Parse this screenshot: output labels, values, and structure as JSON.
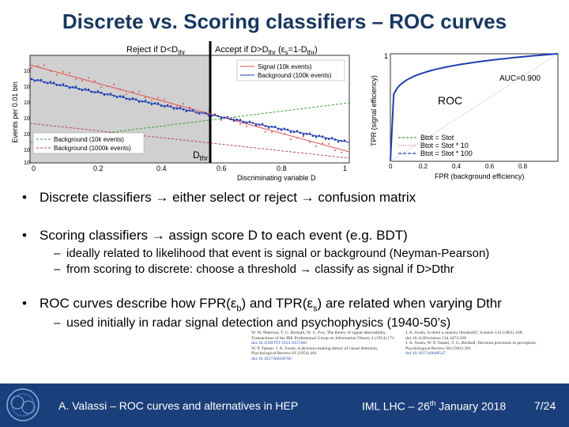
{
  "title": "Discrete vs. Scoring classifiers – ROC curves",
  "hist": {
    "reject_label_a": "Reject if D<D",
    "reject_label_sub": "thr",
    "accept_label_a": "Accept if D>D",
    "accept_label_sub": "thr",
    "accept_label_b": " (ε",
    "accept_label_sub2": "s",
    "accept_label_c": "=1-D",
    "accept_label_sub3": "thr",
    "accept_label_d": ")",
    "dthr_label": "D",
    "dthr_sub": "thr",
    "ylabel": "Events per 0.01 bin",
    "xlabel": "Discriminating variable D",
    "xticks": [
      "0",
      "0.2",
      "0.4",
      "0.6",
      "0.8",
      "1"
    ],
    "legend_top": [
      "Signal (10k events)",
      "Background (100k events)"
    ],
    "legend_bottom": [
      "Background (10k events)",
      "Background (1000k events)"
    ],
    "colors": {
      "signal": "#e05050",
      "background": "#1f3fb0",
      "bg10k": "#40a040",
      "bg1000k": "#c04060"
    }
  },
  "roc": {
    "ylabel": "TPR (signal efficiency)",
    "xlabel": "FPR (background efficiency)",
    "label": "ROC",
    "auc": "AUC=0.900",
    "yticks": [
      "1"
    ],
    "xticks": [
      "0",
      "0.2",
      "0.4",
      "0.6",
      "0.8"
    ],
    "legend": [
      "Btot = Stot",
      "Btot = Stot * 10",
      "Btot = Stot * 100"
    ]
  },
  "bullets": [
    {
      "text": "Discrete classifiers → either select or reject → confusion matrix",
      "subs": []
    },
    {
      "text": "Scoring classifiers → assign score D to each event (e.g. BDT)",
      "subs": [
        "ideally related to likelihood that event is signal or background (Neyman-Pearson)",
        "from scoring to discrete: choose a threshold → classify as signal if D>Dthr"
      ]
    },
    {
      "text": "ROC curves describe how FPR(ε_b) and TPR(ε_s) are related when varying Dthr",
      "subs": [
        "used initially in radar signal detection and psychophysics (1940-50’s)"
      ]
    }
  ],
  "bullet3": {
    "a": "ROC curves describe how FPR(ε",
    "b": "b",
    "c": ") and TPR(ε",
    "d": "s",
    "e": ") are related when varying Dthr"
  },
  "refs": {
    "left": [
      "W. W. Peterson, T. G. Birdsall, W. C. Fox, The theory of signal detectability, Transactions of the IRE Professional Group on Information Theory 4 (1954) 171",
      "doi:10.1109/TIT.1954.1057460",
      "W. P. Tanner, J. A. Swets, A decision-making theory of visual detection, Psychological Review 61 (1954) 401",
      "doi:10.1037/h0058700"
    ],
    "right": [
      "J. A. Swets, Is there a sensory threshold?, Science 134 (1961) 168, doi:10.1126/science.134.3473.168",
      "J. A. Swets, W. P. Tanner, T. G. Birdsall, Decision processes in perception, Psychological Review 68 (1961) 301",
      "doi:10.1037/h0040547"
    ]
  },
  "footer": {
    "left": "A. Valassi – ROC curves and alternatives in HEP",
    "mid_a": "IML LHC – 26",
    "mid_sup": "th",
    "mid_b": " January 2018",
    "right": "7/24"
  }
}
